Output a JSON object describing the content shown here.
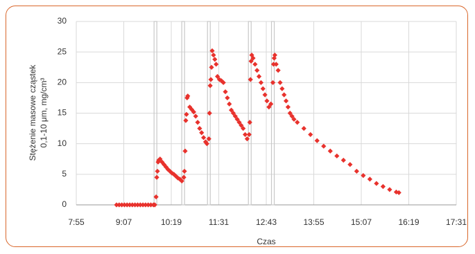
{
  "chart_data": {
    "type": "scatter",
    "y_label": [
      "Stężenie masowe cząstek",
      "0,1-10 μm, mg/cm³"
    ],
    "x_label": "Czas",
    "color": "#e8322d",
    "band_color": "#c8c8c8",
    "grid": true,
    "xlim": [
      475,
      1051
    ],
    "ylim": [
      0,
      30
    ],
    "xticks": [
      {
        "value": 475,
        "label": "7:55"
      },
      {
        "value": 547,
        "label": "9:07"
      },
      {
        "value": 619,
        "label": "10:19"
      },
      {
        "value": 691,
        "label": "11:31"
      },
      {
        "value": 763,
        "label": "12:43"
      },
      {
        "value": 835,
        "label": "13:55"
      },
      {
        "value": 907,
        "label": "15:07"
      },
      {
        "value": 979,
        "label": "16:19"
      },
      {
        "value": 1051,
        "label": "17:31"
      }
    ],
    "yticks": [
      0,
      5,
      10,
      15,
      20,
      25,
      30
    ],
    "bands_x": [
      595,
      637,
      676,
      738,
      773
    ],
    "x": [
      536,
      540,
      544,
      548,
      552,
      556,
      560,
      564,
      568,
      572,
      576,
      580,
      584,
      588,
      592,
      594,
      596,
      597,
      598,
      599,
      600,
      602,
      605,
      608,
      611,
      614,
      617,
      620,
      623,
      626,
      629,
      632,
      635,
      638,
      639,
      640,
      641,
      642,
      643,
      644,
      647,
      650,
      653,
      656,
      659,
      662,
      665,
      668,
      671,
      673,
      676,
      677,
      678,
      679,
      680,
      681,
      683,
      685,
      687,
      689,
      692,
      695,
      698,
      701,
      704,
      707,
      710,
      713,
      716,
      719,
      722,
      725,
      728,
      731,
      734,
      737,
      738,
      739,
      740,
      741,
      743,
      746,
      749,
      752,
      755,
      758,
      761,
      764,
      767,
      770,
      773,
      774,
      775,
      776,
      778,
      781,
      784,
      787,
      790,
      793,
      796,
      799,
      802,
      805,
      810,
      820,
      830,
      840,
      850,
      860,
      870,
      880,
      890,
      900,
      910,
      920,
      930,
      940,
      950,
      960,
      964
    ],
    "values": [
      0,
      0,
      0,
      0,
      0,
      0,
      0,
      0,
      0,
      0,
      0,
      0,
      0,
      0,
      0,
      0,
      1.3,
      4.5,
      5.5,
      7,
      7.3,
      7.5,
      7,
      6.6,
      6.2,
      5.8,
      5.5,
      5.2,
      5,
      4.7,
      4.4,
      4.2,
      3.9,
      4.5,
      5.5,
      8.8,
      13.8,
      14.8,
      17.5,
      17.8,
      16,
      15.6,
      15.2,
      14.5,
      13.5,
      12.5,
      11.8,
      11,
      10.3,
      10,
      10.8,
      15,
      19.5,
      20.5,
      22.5,
      25.2,
      24.5,
      23.8,
      23,
      21,
      20.5,
      20.3,
      20,
      18.5,
      17.5,
      16.5,
      15.5,
      15,
      14.5,
      14,
      13.5,
      13,
      12.5,
      11.5,
      10.8,
      11.5,
      13.5,
      20.5,
      23.5,
      24.5,
      24,
      23,
      22,
      21,
      20,
      19,
      18,
      17,
      16,
      16.5,
      20,
      23,
      24,
      24.5,
      23,
      22,
      20,
      19,
      18,
      17,
      16,
      15,
      14.5,
      14,
      13.5,
      12.5,
      11.5,
      10.5,
      9.6,
      8.8,
      8,
      7.3,
      6.6,
      5.5,
      4.8,
      4.2,
      3.5,
      3,
      2.5,
      2.1,
      2
    ]
  }
}
